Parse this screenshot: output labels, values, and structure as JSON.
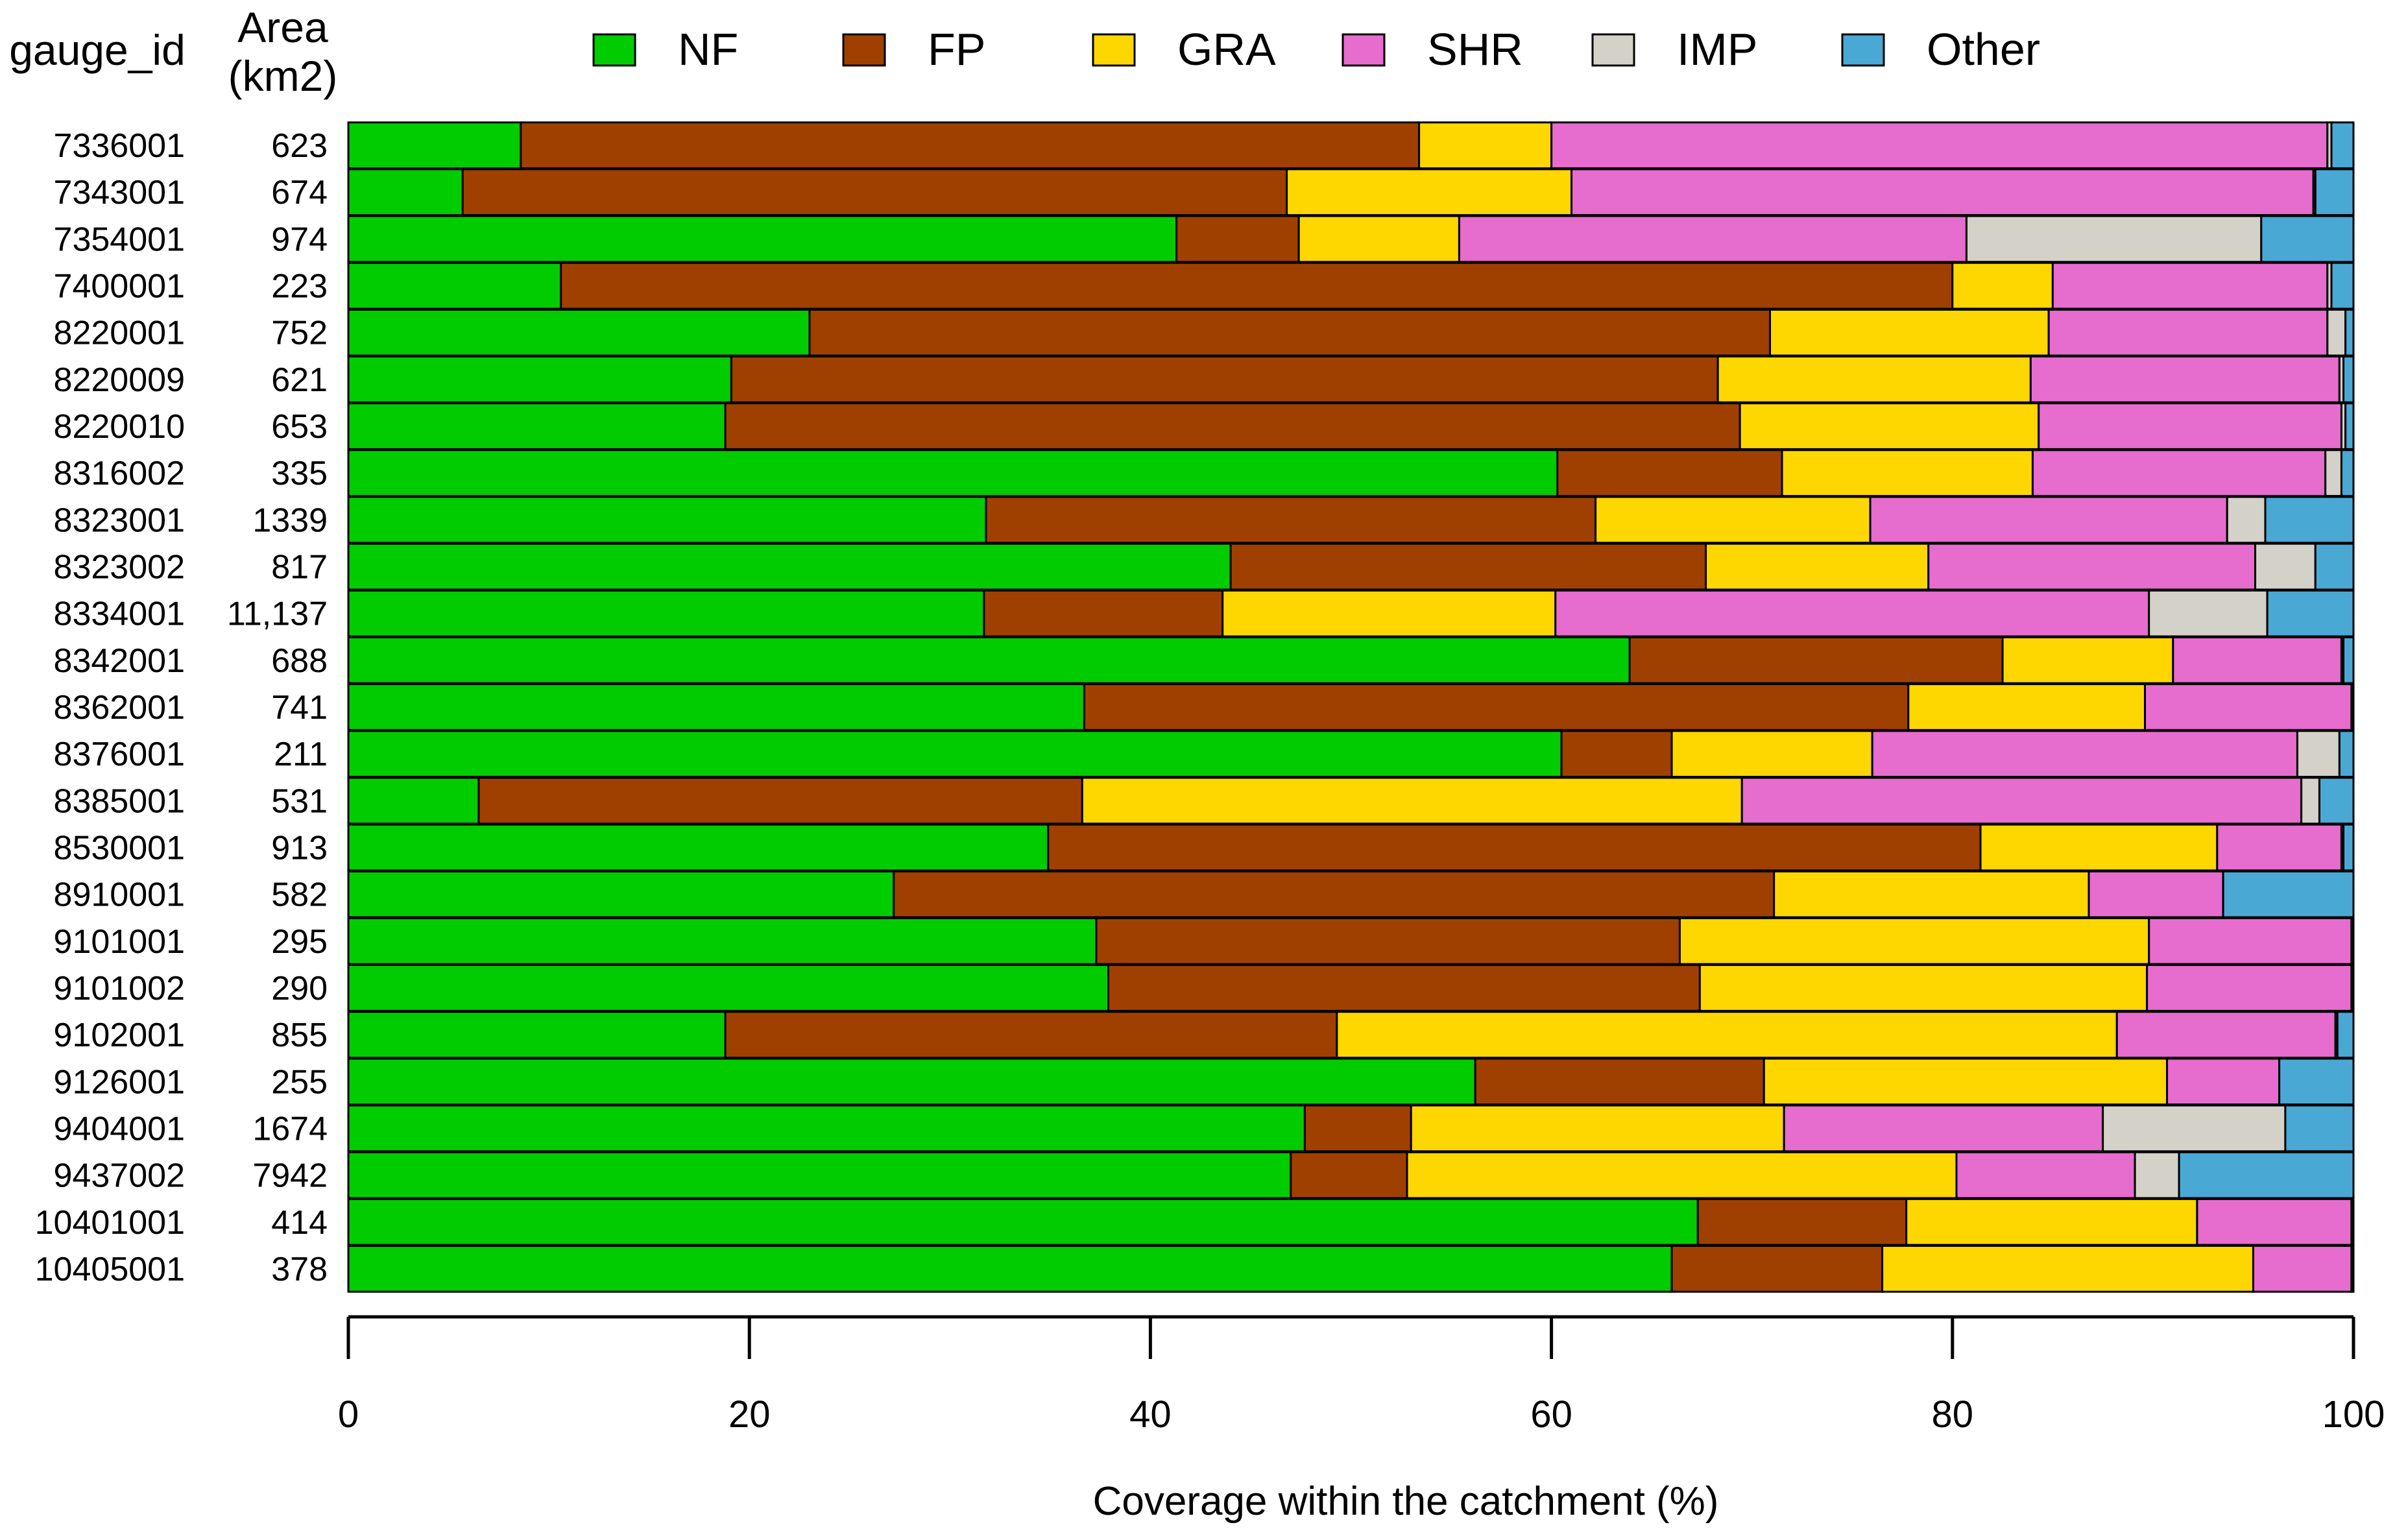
{
  "chart_data": {
    "type": "bar",
    "orientation": "horizontal",
    "stacked": true,
    "xlabel": "Coverage within the catchment (%)",
    "xlim": [
      0,
      100
    ],
    "xticks": [
      "0",
      "20",
      "40",
      "60",
      "80",
      "100"
    ],
    "column_headers": {
      "id": "gauge_id",
      "area_line1": "Area",
      "area_line2": "(km2)"
    },
    "legend_position": "top",
    "series": [
      {
        "name": "NF",
        "color": "#00cc00"
      },
      {
        "name": "FP",
        "color": "#a04000"
      },
      {
        "name": "GRA",
        "color": "#ffd700"
      },
      {
        "name": "SHR",
        "color": "#e66ccd"
      },
      {
        "name": "IMP",
        "color": "#d4d2c8"
      },
      {
        "name": "Other",
        "color": "#4aa8d4"
      }
    ],
    "rows": [
      {
        "gauge_id": "7336001",
        "area": "623",
        "values": [
          8.6,
          44.8,
          6.6,
          38.7,
          0.2,
          1.1
        ]
      },
      {
        "gauge_id": "7343001",
        "area": "674",
        "values": [
          5.7,
          41.1,
          14.2,
          37.0,
          0.1,
          1.9
        ]
      },
      {
        "gauge_id": "7354001",
        "area": "974",
        "values": [
          41.3,
          6.1,
          8.0,
          25.3,
          14.7,
          4.6
        ]
      },
      {
        "gauge_id": "7400001",
        "area": "223",
        "values": [
          10.6,
          69.4,
          5.0,
          13.7,
          0.2,
          1.1
        ]
      },
      {
        "gauge_id": "8220001",
        "area": "752",
        "values": [
          23.0,
          47.9,
          13.9,
          13.9,
          0.9,
          0.4
        ]
      },
      {
        "gauge_id": "8220009",
        "area": "621",
        "values": [
          19.1,
          49.2,
          15.6,
          15.4,
          0.2,
          0.5
        ]
      },
      {
        "gauge_id": "8220010",
        "area": "653",
        "values": [
          18.8,
          50.6,
          14.9,
          15.1,
          0.2,
          0.4
        ]
      },
      {
        "gauge_id": "8316002",
        "area": "335",
        "values": [
          60.3,
          11.2,
          12.5,
          14.6,
          0.8,
          0.6
        ]
      },
      {
        "gauge_id": "8323001",
        "area": "1339",
        "values": [
          31.8,
          30.4,
          13.7,
          17.8,
          1.9,
          4.4
        ]
      },
      {
        "gauge_id": "8323002",
        "area": "817",
        "values": [
          44.0,
          23.7,
          11.1,
          16.3,
          3.0,
          1.9
        ]
      },
      {
        "gauge_id": "8334001",
        "area": "11,137",
        "values": [
          31.7,
          11.9,
          16.6,
          29.6,
          5.9,
          4.3
        ]
      },
      {
        "gauge_id": "8342001",
        "area": "688",
        "values": [
          63.9,
          18.6,
          8.5,
          8.4,
          0.1,
          0.5
        ]
      },
      {
        "gauge_id": "8362001",
        "area": "741",
        "values": [
          36.7,
          41.1,
          11.8,
          10.3,
          0.0,
          0.1
        ]
      },
      {
        "gauge_id": "8376001",
        "area": "211",
        "values": [
          60.5,
          5.5,
          10.0,
          21.2,
          2.1,
          0.7
        ]
      },
      {
        "gauge_id": "8385001",
        "area": "531",
        "values": [
          6.5,
          30.1,
          32.9,
          27.9,
          0.9,
          1.7
        ]
      },
      {
        "gauge_id": "8530001",
        "area": "913",
        "values": [
          34.9,
          46.5,
          11.8,
          6.2,
          0.1,
          0.5
        ]
      },
      {
        "gauge_id": "8910001",
        "area": "582",
        "values": [
          27.2,
          43.9,
          15.7,
          6.7,
          0.0,
          6.5
        ]
      },
      {
        "gauge_id": "9101001",
        "area": "295",
        "values": [
          37.3,
          29.1,
          23.4,
          10.1,
          0.0,
          0.1
        ]
      },
      {
        "gauge_id": "9101002",
        "area": "290",
        "values": [
          37.9,
          29.5,
          22.3,
          10.2,
          0.0,
          0.1
        ]
      },
      {
        "gauge_id": "9102001",
        "area": "855",
        "values": [
          18.8,
          30.5,
          38.9,
          10.9,
          0.1,
          0.8
        ]
      },
      {
        "gauge_id": "9126001",
        "area": "255",
        "values": [
          56.2,
          14.4,
          20.1,
          5.6,
          0.0,
          3.7
        ]
      },
      {
        "gauge_id": "9404001",
        "area": "1674",
        "values": [
          47.7,
          5.3,
          18.6,
          15.9,
          9.1,
          3.4
        ]
      },
      {
        "gauge_id": "9437002",
        "area": "7942",
        "values": [
          47.0,
          5.8,
          27.4,
          8.9,
          2.2,
          8.7
        ]
      },
      {
        "gauge_id": "10401001",
        "area": "414",
        "values": [
          67.3,
          10.4,
          14.5,
          7.7,
          0.0,
          0.1
        ]
      },
      {
        "gauge_id": "10405001",
        "area": "378",
        "values": [
          66.0,
          10.5,
          18.5,
          4.9,
          0.0,
          0.1
        ]
      }
    ]
  }
}
